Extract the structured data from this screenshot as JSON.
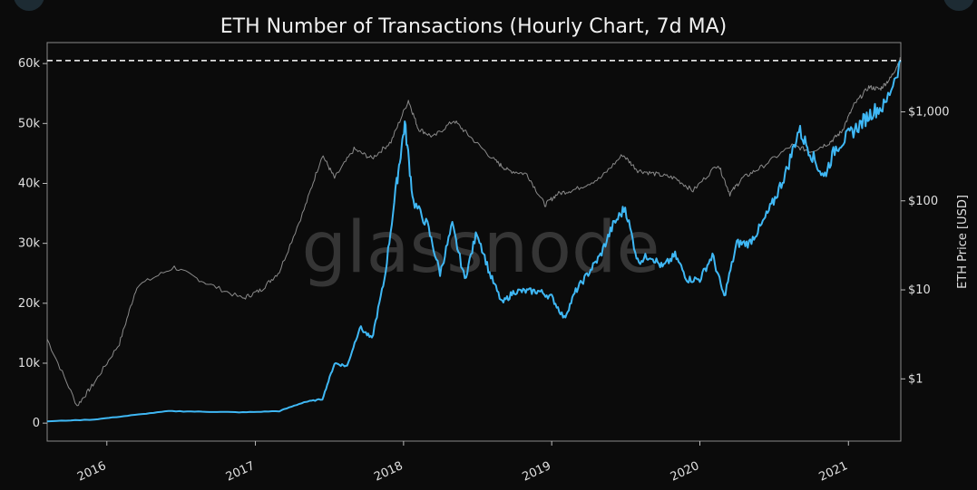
{
  "chart_data": {
    "type": "line",
    "title": "ETH Number of Transactions (Hourly Chart, 7d MA)",
    "watermark": "glassnode",
    "x_tick_labels": [
      "2016",
      "2017",
      "2018",
      "2019",
      "2020",
      "2021"
    ],
    "x_range": [
      "2015-08-07",
      "2021-05-10"
    ],
    "y_left": {
      "ticks": [
        0,
        10000,
        20000,
        30000,
        40000,
        50000,
        60000
      ],
      "tick_labels": [
        "0",
        "10k",
        "20k",
        "30k",
        "40k",
        "50k",
        "60k"
      ],
      "range": [
        -3000,
        63500
      ]
    },
    "y_right": {
      "label": "ETH Price [USD]",
      "scale": "log",
      "ticks": [
        1,
        10,
        100,
        1000
      ],
      "tick_labels": [
        "$1",
        "$10",
        "$100",
        "$1,000"
      ],
      "range": [
        0.2,
        6000
      ]
    },
    "reference_line": {
      "value": 60500,
      "style": "dashed",
      "color": "#ffffff"
    },
    "grid": false,
    "series": [
      {
        "axis": "left",
        "color": "#3fb8f5",
        "points": [
          [
            "2015-08-07",
            300
          ],
          [
            "2015-12-01",
            600
          ],
          [
            "2016-03-01",
            1300
          ],
          [
            "2016-06-01",
            2000
          ],
          [
            "2016-09-01",
            1900
          ],
          [
            "2016-12-01",
            1800
          ],
          [
            "2017-03-01",
            2000
          ],
          [
            "2017-05-01",
            3500
          ],
          [
            "2017-06-15",
            4000
          ],
          [
            "2017-07-15",
            10000
          ],
          [
            "2017-08-15",
            9500
          ],
          [
            "2017-09-15",
            16000
          ],
          [
            "2017-10-15",
            14000
          ],
          [
            "2017-11-15",
            24000
          ],
          [
            "2017-12-15",
            40000
          ],
          [
            "2018-01-04",
            50000
          ],
          [
            "2018-01-25",
            37000
          ],
          [
            "2018-03-01",
            33000
          ],
          [
            "2018-04-01",
            25000
          ],
          [
            "2018-05-01",
            33000
          ],
          [
            "2018-06-01",
            24000
          ],
          [
            "2018-07-01",
            32000
          ],
          [
            "2018-08-01",
            25000
          ],
          [
            "2018-09-01",
            20000
          ],
          [
            "2018-10-01",
            22000
          ],
          [
            "2018-11-01",
            22000
          ],
          [
            "2018-12-01",
            22000
          ],
          [
            "2019-01-01",
            21000
          ],
          [
            "2019-02-01",
            17500
          ],
          [
            "2019-03-01",
            22000
          ],
          [
            "2019-04-01",
            25000
          ],
          [
            "2019-05-01",
            28000
          ],
          [
            "2019-06-01",
            33000
          ],
          [
            "2019-07-01",
            36000
          ],
          [
            "2019-08-01",
            27000
          ],
          [
            "2019-09-01",
            28000
          ],
          [
            "2019-10-01",
            26000
          ],
          [
            "2019-11-01",
            28000
          ],
          [
            "2019-12-01",
            24000
          ],
          [
            "2020-01-01",
            24000
          ],
          [
            "2020-02-01",
            28000
          ],
          [
            "2020-03-01",
            21000
          ],
          [
            "2020-04-01",
            30000
          ],
          [
            "2020-05-01",
            30000
          ],
          [
            "2020-06-01",
            33000
          ],
          [
            "2020-07-01",
            37000
          ],
          [
            "2020-08-01",
            42000
          ],
          [
            "2020-09-01",
            49000
          ],
          [
            "2020-10-01",
            45000
          ],
          [
            "2020-11-01",
            41000
          ],
          [
            "2020-12-01",
            46000
          ],
          [
            "2021-01-01",
            48000
          ],
          [
            "2021-02-01",
            50000
          ],
          [
            "2021-03-01",
            52000
          ],
          [
            "2021-04-01",
            53000
          ],
          [
            "2021-05-10",
            60500
          ]
        ]
      },
      {
        "axis": "right",
        "color": "#8a8a8a",
        "points": [
          [
            "2015-08-07",
            2.8
          ],
          [
            "2015-10-20",
            0.5
          ],
          [
            "2015-12-01",
            0.9
          ],
          [
            "2016-02-01",
            2.5
          ],
          [
            "2016-03-15",
            11
          ],
          [
            "2016-06-15",
            18
          ],
          [
            "2016-09-01",
            12
          ],
          [
            "2016-12-01",
            8
          ],
          [
            "2017-01-15",
            10
          ],
          [
            "2017-03-01",
            16
          ],
          [
            "2017-05-01",
            80
          ],
          [
            "2017-06-15",
            330
          ],
          [
            "2017-07-15",
            180
          ],
          [
            "2017-09-01",
            380
          ],
          [
            "2017-10-15",
            300
          ],
          [
            "2017-12-01",
            460
          ],
          [
            "2018-01-13",
            1350
          ],
          [
            "2018-02-06",
            650
          ],
          [
            "2018-03-15",
            520
          ],
          [
            "2018-05-05",
            800
          ],
          [
            "2018-06-15",
            520
          ],
          [
            "2018-08-15",
            280
          ],
          [
            "2018-09-15",
            220
          ],
          [
            "2018-11-01",
            200
          ],
          [
            "2018-12-15",
            90
          ],
          [
            "2019-01-15",
            120
          ],
          [
            "2019-03-01",
            135
          ],
          [
            "2019-05-01",
            180
          ],
          [
            "2019-06-25",
            330
          ],
          [
            "2019-08-01",
            220
          ],
          [
            "2019-09-15",
            200
          ],
          [
            "2019-11-01",
            180
          ],
          [
            "2019-12-15",
            130
          ],
          [
            "2020-02-15",
            260
          ],
          [
            "2020-03-15",
            120
          ],
          [
            "2020-04-15",
            180
          ],
          [
            "2020-06-01",
            240
          ],
          [
            "2020-08-15",
            420
          ],
          [
            "2020-10-01",
            360
          ],
          [
            "2020-11-15",
            450
          ],
          [
            "2020-12-15",
            600
          ],
          [
            "2021-01-15",
            1200
          ],
          [
            "2021-02-20",
            1900
          ],
          [
            "2021-03-20",
            1800
          ],
          [
            "2021-04-15",
            2400
          ],
          [
            "2021-05-10",
            4000
          ]
        ]
      }
    ]
  }
}
